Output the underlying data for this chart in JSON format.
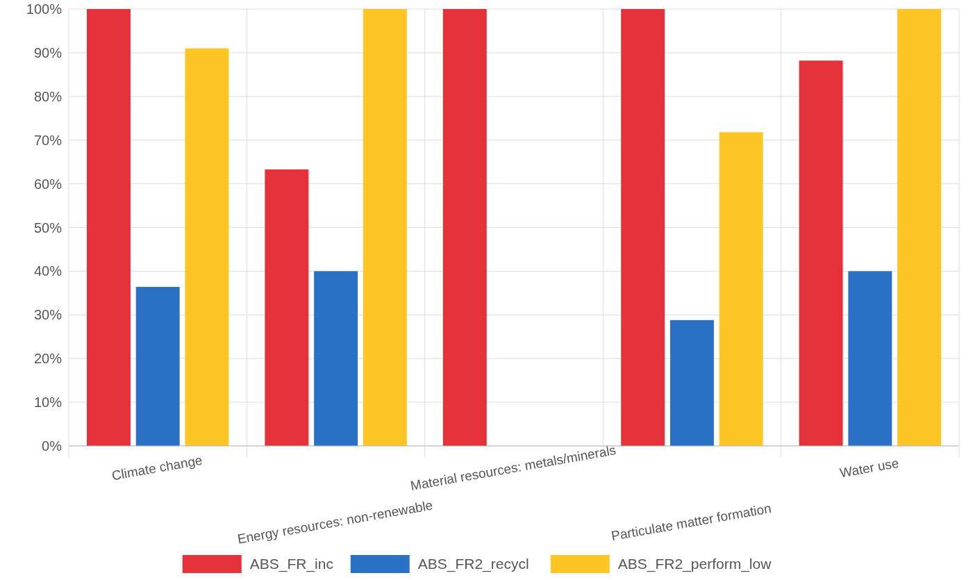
{
  "chart_data": {
    "type": "bar",
    "categories": [
      "Climate change",
      "Energy resources: non-renewable",
      "Material resources: metals/minerals",
      "Particulate matter formation",
      "Water use"
    ],
    "series": [
      {
        "name": "ABS_FR_inc",
        "color": "#e4313a",
        "values": [
          100,
          63.3,
          100,
          100,
          88.2
        ]
      },
      {
        "name": "ABS_FR2_recycl",
        "color": "#2a71c5",
        "values": [
          36.4,
          40,
          null,
          28.8,
          40
        ]
      },
      {
        "name": "ABS_FR2_perform_low",
        "color": "#fdc624",
        "values": [
          91,
          100,
          null,
          71.8,
          100
        ]
      }
    ],
    "ylim": [
      0,
      100
    ],
    "yticks": [
      {
        "value": 0,
        "label": "0%"
      },
      {
        "value": 10,
        "label": "10%"
      },
      {
        "value": 20,
        "label": "20%"
      },
      {
        "value": 30,
        "label": "30%"
      },
      {
        "value": 40,
        "label": "40%"
      },
      {
        "value": 50,
        "label": "50%"
      },
      {
        "value": 60,
        "label": "60%"
      },
      {
        "value": 70,
        "label": "70%"
      },
      {
        "value": 80,
        "label": "80%"
      },
      {
        "value": 90,
        "label": "90%"
      },
      {
        "value": 100,
        "label": "100%"
      }
    ],
    "grid": true,
    "legend": "bottom"
  }
}
